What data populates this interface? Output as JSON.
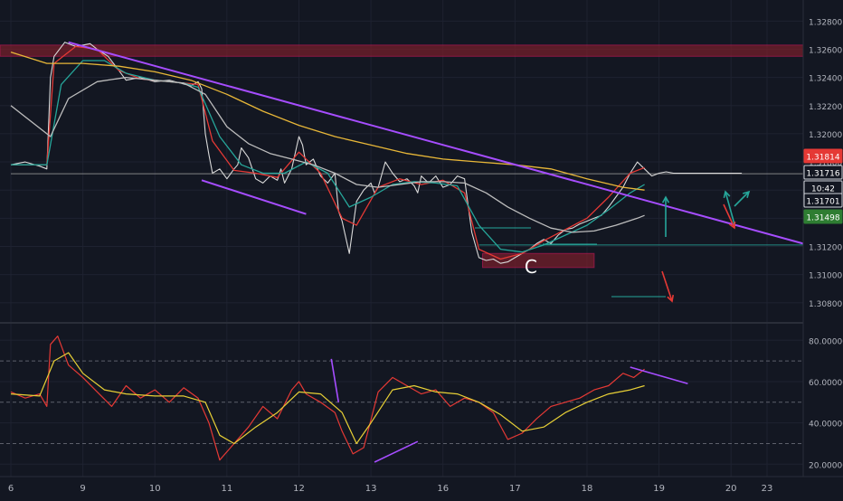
{
  "chart_data": [
    {
      "type": "line",
      "panel": "price",
      "chart_kind": "candlestick/line",
      "scale": "linear",
      "grid": true,
      "ylim": [
        1.3067,
        1.3295
      ],
      "yticks": [
        1.328,
        1.326,
        1.324,
        1.322,
        1.32,
        1.318,
        1.316,
        1.314,
        1.312,
        1.31,
        1.308
      ],
      "ytick_labels": [
        "1.32800",
        "1.32600",
        "1.32400",
        "1.32200",
        "1.32000",
        "1.31800",
        "1.31600",
        "1.31400",
        "1.31200",
        "1.31000",
        "1.30800"
      ],
      "x_labels": [
        "6",
        "9",
        "10",
        "11",
        "12",
        "13",
        "16",
        "17",
        "18",
        "19",
        "20",
        "23"
      ],
      "price_tags": [
        {
          "label": "1.31814",
          "value": 1.31814,
          "color": "#e53935"
        },
        {
          "label": "1.31716",
          "value": 1.31716,
          "color": "#131722"
        },
        {
          "label": "10:42",
          "value": 1.3161,
          "color": "#131722"
        },
        {
          "label": "1.31701",
          "value": 1.31701,
          "color": "#131722"
        },
        {
          "label": "1.31498",
          "value": 1.31498,
          "color": "#2e7d32"
        }
      ],
      "series": [
        {
          "name": "price",
          "color": "#d9d9d9",
          "x": [
            0.0,
            0.2,
            0.4,
            0.5,
            0.55,
            0.6,
            0.75,
            0.9,
            1.1,
            1.2,
            1.35,
            1.5,
            1.6,
            1.8,
            2.0,
            2.2,
            2.35,
            2.5,
            2.6,
            2.65,
            2.7,
            2.75,
            2.8,
            2.9,
            3.0,
            3.1,
            3.15,
            3.2,
            3.3,
            3.4,
            3.5,
            3.6,
            3.7,
            3.75,
            3.8,
            3.9,
            4.0,
            4.05,
            4.1,
            4.2,
            4.3,
            4.4,
            4.5,
            4.55,
            4.6,
            4.7,
            4.8,
            4.9,
            5.0,
            5.05,
            5.1,
            5.2,
            5.3,
            5.4,
            5.5,
            5.6,
            5.65,
            5.7,
            5.8,
            5.9,
            6.0,
            6.1,
            6.2,
            6.3,
            6.4,
            6.5,
            6.6,
            6.7,
            6.8,
            6.9,
            7.0,
            7.1,
            7.2,
            7.3,
            7.4,
            7.5,
            7.6,
            7.7,
            7.8,
            7.9,
            8.0,
            8.1,
            8.2,
            8.3,
            8.4,
            8.5,
            8.6,
            8.7,
            8.8,
            8.9,
            9.0,
            9.1,
            9.2,
            9.3,
            9.4,
            9.5,
            9.6,
            9.7,
            9.8,
            9.85,
            9.95,
            10.05,
            10.1,
            10.15
          ],
          "values": [
            1.3178,
            1.318,
            1.3177,
            1.3175,
            1.324,
            1.3255,
            1.3265,
            1.3262,
            1.3264,
            1.326,
            1.3255,
            1.3245,
            1.3238,
            1.324,
            1.3237,
            1.3238,
            1.3236,
            1.3234,
            1.3237,
            1.3232,
            1.32,
            1.3185,
            1.3172,
            1.3175,
            1.3168,
            1.3175,
            1.3178,
            1.319,
            1.3183,
            1.3168,
            1.3165,
            1.317,
            1.3167,
            1.3175,
            1.3165,
            1.3175,
            1.3198,
            1.3192,
            1.3178,
            1.3182,
            1.317,
            1.3165,
            1.3172,
            1.3145,
            1.3138,
            1.3115,
            1.3152,
            1.316,
            1.3165,
            1.3158,
            1.3162,
            1.318,
            1.3172,
            1.3166,
            1.3168,
            1.3163,
            1.3158,
            1.317,
            1.3165,
            1.317,
            1.3162,
            1.3164,
            1.317,
            1.3168,
            1.313,
            1.3112,
            1.311,
            1.3111,
            1.3108,
            1.3109,
            1.3112,
            1.3115,
            1.3118,
            1.3122,
            1.3125,
            1.3122,
            1.3128,
            1.3132,
            1.3133,
            1.3136,
            1.3138,
            1.314,
            1.3142,
            1.3148,
            1.3155,
            1.3162,
            1.3172,
            1.318,
            1.3175,
            1.317,
            1.3172,
            1.3173,
            1.3172,
            1.3172,
            1.3172,
            1.3172,
            1.3172,
            1.3172,
            1.3172,
            1.3172,
            1.3172,
            1.3172,
            1.3172,
            1.3172
          ]
        },
        {
          "name": "ma-fast",
          "color": "#e53935",
          "x": [
            0.0,
            0.5,
            0.6,
            0.9,
            1.2,
            1.5,
            1.8,
            2.2,
            2.6,
            2.8,
            3.1,
            3.4,
            3.7,
            4.0,
            4.3,
            4.6,
            4.8,
            5.1,
            5.4,
            5.7,
            6.0,
            6.3,
            6.5,
            6.8,
            7.1,
            7.4,
            7.7,
            8.0,
            8.3,
            8.6,
            8.8
          ],
          "values": [
            1.3178,
            1.3178,
            1.325,
            1.3262,
            1.326,
            1.3245,
            1.3239,
            1.3237,
            1.3235,
            1.3195,
            1.3174,
            1.3172,
            1.3169,
            1.3187,
            1.3172,
            1.314,
            1.3135,
            1.3162,
            1.3168,
            1.3164,
            1.3167,
            1.3158,
            1.3118,
            1.3111,
            1.3115,
            1.3124,
            1.3132,
            1.314,
            1.3155,
            1.3172,
            1.3176
          ]
        },
        {
          "name": "ma-mid",
          "color": "#26a69a",
          "x": [
            0.0,
            0.5,
            0.7,
            1.0,
            1.3,
            1.6,
            2.0,
            2.4,
            2.6,
            2.9,
            3.2,
            3.5,
            3.8,
            4.1,
            4.4,
            4.7,
            5.0,
            5.3,
            5.6,
            5.9,
            6.2,
            6.5,
            6.8,
            7.1,
            7.4,
            7.7,
            8.0,
            8.3,
            8.6,
            8.8
          ],
          "values": [
            1.3178,
            1.3178,
            1.3235,
            1.3252,
            1.3252,
            1.3243,
            1.3238,
            1.3236,
            1.3233,
            1.3198,
            1.3178,
            1.3172,
            1.3172,
            1.318,
            1.3172,
            1.3148,
            1.3155,
            1.3164,
            1.3166,
            1.3165,
            1.3163,
            1.3135,
            1.3118,
            1.3116,
            1.3121,
            1.3128,
            1.3135,
            1.3146,
            1.3158,
            1.3164
          ]
        },
        {
          "name": "ma-slow",
          "color": "#bdbdbd",
          "x": [
            0.0,
            0.55,
            0.8,
            1.2,
            1.6,
            2.0,
            2.4,
            2.7,
            3.0,
            3.3,
            3.6,
            3.9,
            4.2,
            4.5,
            4.8,
            5.1,
            5.4,
            5.7,
            6.0,
            6.3,
            6.6,
            6.9,
            7.2,
            7.5,
            7.8,
            8.1,
            8.4,
            8.7,
            8.8
          ],
          "values": [
            1.322,
            1.3198,
            1.3225,
            1.3237,
            1.324,
            1.3238,
            1.3236,
            1.3228,
            1.3205,
            1.3193,
            1.3186,
            1.3182,
            1.3178,
            1.3172,
            1.3164,
            1.3162,
            1.3164,
            1.3166,
            1.3166,
            1.3165,
            1.3158,
            1.3148,
            1.314,
            1.3133,
            1.313,
            1.3131,
            1.3135,
            1.314,
            1.3142
          ]
        },
        {
          "name": "ma-long",
          "color": "#e8b738",
          "x": [
            0.0,
            0.5,
            1.0,
            1.5,
            2.0,
            2.5,
            3.0,
            3.5,
            4.0,
            4.5,
            5.0,
            5.5,
            6.0,
            6.5,
            7.0,
            7.5,
            8.0,
            8.5,
            8.8
          ],
          "values": [
            1.3258,
            1.325,
            1.325,
            1.3248,
            1.3244,
            1.3238,
            1.3228,
            1.3216,
            1.3206,
            1.3198,
            1.3192,
            1.3186,
            1.3182,
            1.318,
            1.3178,
            1.3175,
            1.3168,
            1.3162,
            1.316
          ]
        }
      ],
      "trendlines": [
        {
          "name": "descending-trendline",
          "color": "#a64dff",
          "x": [
            0.8,
            11.2
          ],
          "values": [
            1.3265,
            1.3122
          ]
        },
        {
          "name": "lower-channel-line",
          "color": "#a64dff",
          "x": [
            2.65,
            4.1
          ],
          "values": [
            1.3167,
            1.3143
          ]
        }
      ],
      "zones": [
        {
          "name": "resistance-zone",
          "color": "#7a1f2b",
          "x": [
            -0.5,
            11.2
          ],
          "from": 1.3255,
          "to": 1.3263
        },
        {
          "name": "support-box",
          "color": "#7a1f2b",
          "x": [
            6.55,
            8.1
          ],
          "from": 1.3105,
          "to": 1.3115
        }
      ],
      "levels": [
        {
          "name": "current-price-line",
          "color": "#9e9e9e",
          "x": [
            0.0,
            11.2
          ],
          "value": 1.31716
        },
        {
          "name": "support-line",
          "color": "#26a69a",
          "x": [
            6.5,
            11.2
          ],
          "value": 1.3121
        }
      ],
      "annotations": [
        {
          "text": "C",
          "x": 7.22,
          "value": 1.3101,
          "color": "#ffffff"
        }
      ]
    },
    {
      "type": "line",
      "panel": "oscillator",
      "grid": true,
      "ylim": [
        14,
        88
      ],
      "yticks": [
        80,
        60,
        40,
        20
      ],
      "ytick_labels": [
        "80.00000",
        "60.00000",
        "40.00000",
        "20.00000"
      ],
      "reference_levels": [
        70,
        50,
        30
      ],
      "series": [
        {
          "name": "rsi",
          "color": "#e53935",
          "x": [
            0.0,
            0.2,
            0.4,
            0.5,
            0.55,
            0.65,
            0.8,
            1.0,
            1.2,
            1.4,
            1.6,
            1.8,
            2.0,
            2.2,
            2.4,
            2.6,
            2.75,
            2.9,
            3.1,
            3.3,
            3.5,
            3.7,
            3.9,
            4.0,
            4.1,
            4.3,
            4.5,
            4.6,
            4.75,
            4.9,
            5.1,
            5.3,
            5.5,
            5.7,
            5.9,
            6.1,
            6.3,
            6.5,
            6.7,
            6.9,
            7.1,
            7.3,
            7.5,
            7.7,
            7.9,
            8.1,
            8.3,
            8.5,
            8.65,
            8.8
          ],
          "values": [
            55,
            52,
            54,
            48,
            78,
            82,
            68,
            62,
            55,
            48,
            58,
            52,
            56,
            50,
            57,
            52,
            40,
            22,
            30,
            38,
            48,
            42,
            56,
            60,
            54,
            50,
            45,
            36,
            25,
            28,
            55,
            62,
            58,
            54,
            56,
            48,
            52,
            50,
            45,
            32,
            35,
            42,
            48,
            50,
            52,
            56,
            58,
            64,
            62,
            66
          ]
        },
        {
          "name": "rsi-signal",
          "color": "#e8d036",
          "x": [
            0.0,
            0.4,
            0.6,
            0.8,
            1.0,
            1.3,
            1.6,
            2.0,
            2.4,
            2.7,
            2.9,
            3.1,
            3.4,
            3.7,
            4.0,
            4.3,
            4.6,
            4.8,
            5.0,
            5.3,
            5.6,
            5.9,
            6.2,
            6.5,
            6.8,
            7.1,
            7.4,
            7.7,
            8.0,
            8.3,
            8.6,
            8.8
          ],
          "values": [
            54,
            53,
            70,
            74,
            64,
            56,
            54,
            53,
            53,
            50,
            34,
            30,
            38,
            45,
            55,
            54,
            45,
            30,
            40,
            56,
            58,
            55,
            54,
            50,
            44,
            36,
            38,
            45,
            50,
            54,
            56,
            58
          ]
        }
      ],
      "trendlines": [
        {
          "name": "divergence-line",
          "color": "#a64dff",
          "x": [
            5.05,
            5.65
          ],
          "values": [
            21,
            31
          ]
        },
        {
          "name": "osc-upper-line",
          "color": "#a64dff",
          "x": [
            8.6,
            9.4
          ],
          "values": [
            67,
            59
          ]
        },
        {
          "name": "osc-spike-line",
          "color": "#a64dff",
          "x": [
            4.45,
            4.55
          ],
          "values": [
            71,
            50
          ]
        }
      ]
    }
  ]
}
